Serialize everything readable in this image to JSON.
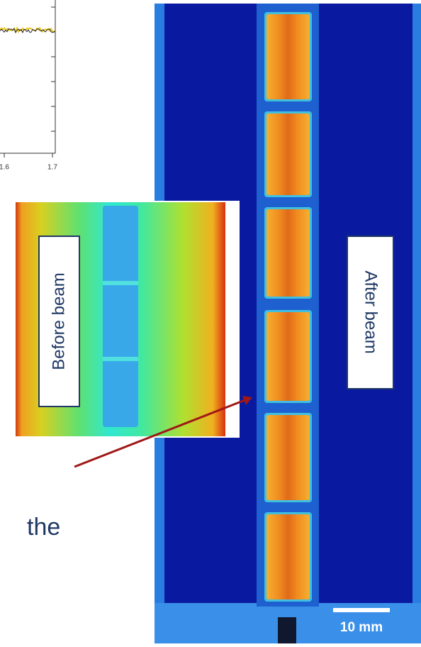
{
  "plot": {
    "xtick_labels": [
      "1.6",
      "1.7"
    ]
  },
  "before_image": {
    "label": "Before beam"
  },
  "after_image": {
    "label": "After beam",
    "scale_bar": "10 mm"
  },
  "body_text": "the"
}
